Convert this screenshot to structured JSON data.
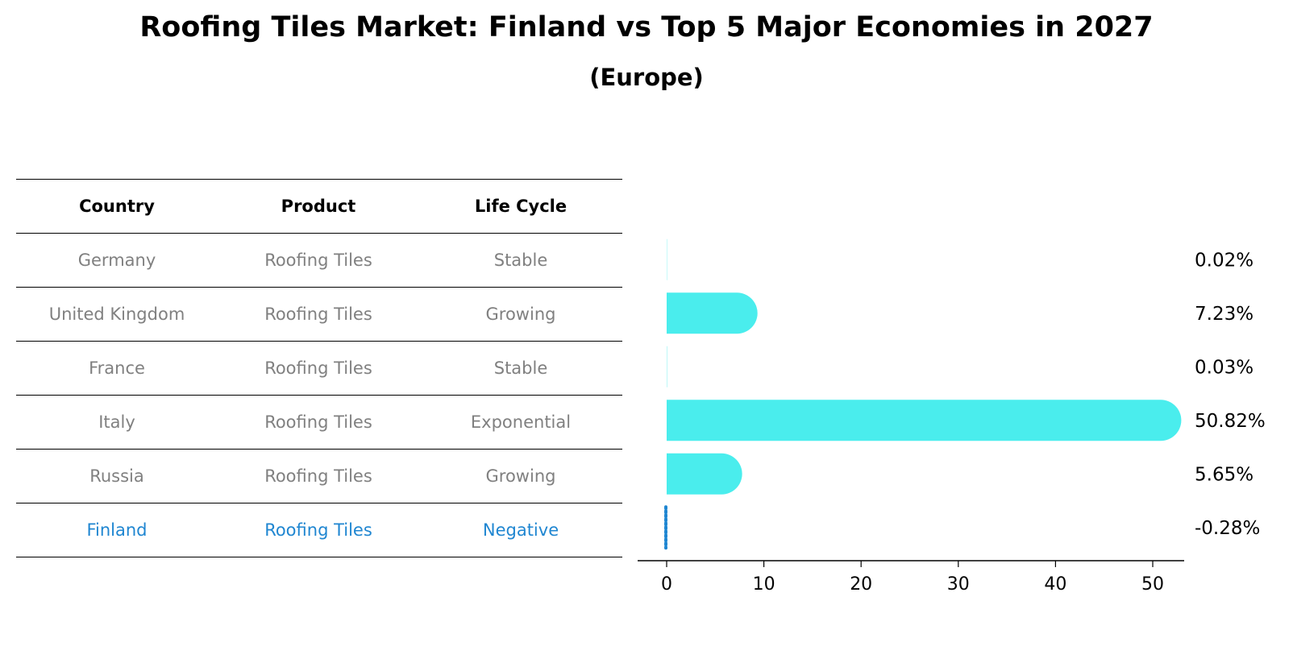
{
  "title": "Roofing Tiles Market: Finland vs Top 5 Major Economies in 2027",
  "subtitle": "(Europe)",
  "table": {
    "headers": [
      "Country",
      "Product",
      "Life Cycle"
    ],
    "rows": [
      {
        "country": "Germany",
        "product": "Roofing Tiles",
        "life_cycle": "Stable"
      },
      {
        "country": "United Kingdom",
        "product": "Roofing Tiles",
        "life_cycle": "Growing"
      },
      {
        "country": "France",
        "product": "Roofing Tiles",
        "life_cycle": "Stable"
      },
      {
        "country": "Italy",
        "product": "Roofing Tiles",
        "life_cycle": "Exponential"
      },
      {
        "country": "Russia",
        "product": "Roofing Tiles",
        "life_cycle": "Growing"
      },
      {
        "country": "Finland",
        "product": "Roofing Tiles",
        "life_cycle": "Negative"
      }
    ]
  },
  "colors": {
    "bar": "#4aeded",
    "highlight": "#1f86d1",
    "muted_text": "#808080"
  },
  "chart_data": {
    "type": "bar",
    "orientation": "horizontal",
    "categories": [
      "Germany",
      "United Kingdom",
      "France",
      "Italy",
      "Russia",
      "Finland"
    ],
    "values": [
      0.02,
      7.23,
      0.03,
      50.82,
      5.65,
      -0.28
    ],
    "value_labels": [
      "0.02%",
      "7.23%",
      "0.03%",
      "50.82%",
      "5.65%",
      "-0.28%"
    ],
    "xticks": [
      "0",
      "10",
      "20",
      "30",
      "40",
      "50"
    ],
    "xlim": [
      -3,
      53
    ],
    "highlight_category": "Finland",
    "grid": false
  }
}
